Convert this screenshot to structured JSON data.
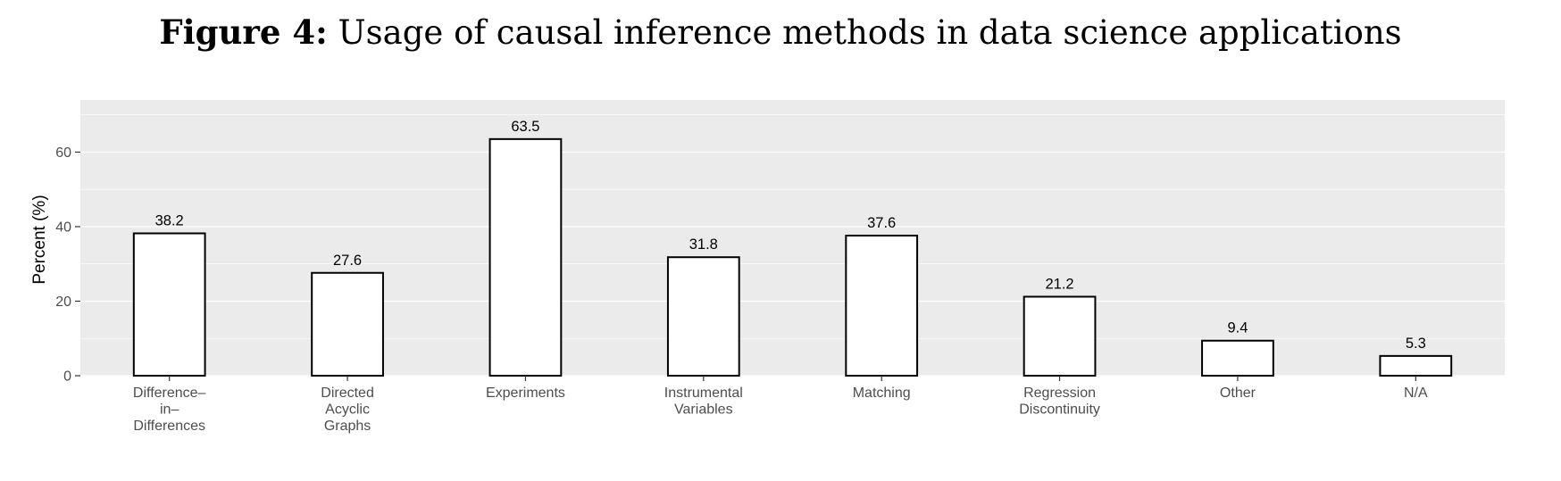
{
  "figure": {
    "label": "Figure 4:",
    "caption": "Usage of causal inference methods in data science applications"
  },
  "chart_data": {
    "type": "bar",
    "title": "",
    "xlabel": "",
    "ylabel": "Percent (%)",
    "categories": [
      [
        "Difference–",
        "in–",
        "Differences"
      ],
      [
        "Directed",
        "Acyclic",
        "Graphs"
      ],
      [
        "Experiments"
      ],
      [
        "Instrumental",
        "Variables"
      ],
      [
        "Matching"
      ],
      [
        "Regression",
        "Discontinuity"
      ],
      [
        "Other"
      ],
      [
        "N/A"
      ]
    ],
    "values": [
      38.2,
      27.6,
      63.5,
      31.8,
      37.6,
      21.2,
      9.4,
      5.3
    ],
    "value_labels": [
      "38.2",
      "27.6",
      "63.5",
      "31.8",
      "37.6",
      "21.2",
      "9.4",
      "5.3"
    ],
    "yticks": [
      0,
      20,
      40,
      60
    ],
    "ylim": [
      0,
      74
    ],
    "grid": true,
    "legend": "none",
    "colors": {
      "panel_background": "#ebebeb",
      "grid": "#ffffff",
      "bar_fill": "#ffffff",
      "bar_outline": "#000000"
    }
  }
}
